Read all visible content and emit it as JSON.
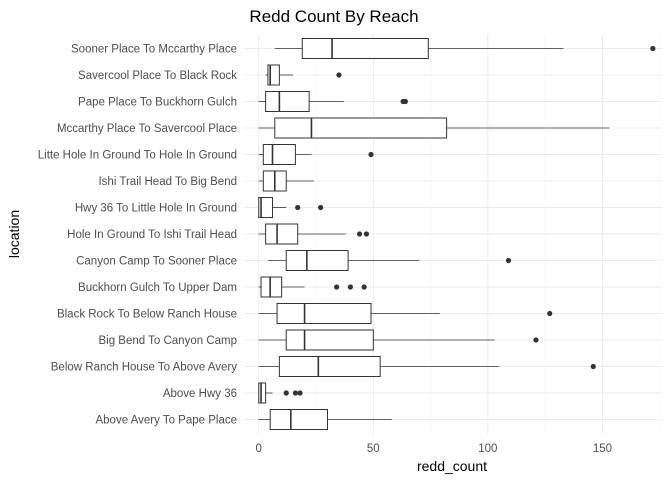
{
  "chart_data": {
    "type": "boxplot",
    "orientation": "horizontal",
    "title": "Redd Count By Reach",
    "xlabel": "redd_count",
    "ylabel": "location",
    "xlim": [
      -6,
      176
    ],
    "x_ticks": [
      0,
      50,
      100,
      150
    ],
    "x_minor_ticks": [
      25,
      75,
      125,
      175
    ],
    "grid": true,
    "legend": "none",
    "colors": {
      "box_fill": "#ffffff",
      "box_stroke": "#333333",
      "grid_major": "#ebebeb",
      "grid_minor": "#f3f3f3",
      "outlier": "#333333"
    },
    "categories": [
      "Sooner Place To Mccarthy Place",
      "Savercool Place  To Black Rock",
      "Pape Place To Buckhorn Gulch",
      "Mccarthy Place To Savercool Place",
      "Litte Hole In Ground To Hole In Ground",
      "Ishi Trail Head To Big Bend",
      "Hwy 36 To Little Hole In Ground",
      "Hole In Ground To Ishi Trail Head",
      "Canyon Camp To Sooner Place",
      "Buckhorn Gulch To Upper Dam",
      "Black Rock To Below Ranch House",
      "Big Bend To Canyon Camp",
      "Below Ranch House To Above Avery",
      "Above Hwy 36",
      "Above Avery To Pape Place"
    ],
    "boxes": [
      {
        "min": 7,
        "q1": 19,
        "median": 32,
        "q3": 74,
        "max": 133,
        "outliers": [
          172
        ]
      },
      {
        "min": 3,
        "q1": 4,
        "median": 5,
        "q3": 9,
        "max": 15,
        "outliers": [
          35
        ]
      },
      {
        "min": 0,
        "q1": 3,
        "median": 9,
        "q3": 22,
        "max": 37,
        "outliers": [
          63,
          64
        ]
      },
      {
        "min": 0,
        "q1": 7,
        "median": 23,
        "q3": 82,
        "max": 153,
        "outliers": []
      },
      {
        "min": 0,
        "q1": 2,
        "median": 6,
        "q3": 16,
        "max": 23,
        "outliers": [
          49
        ]
      },
      {
        "min": 0,
        "q1": 2,
        "median": 7,
        "q3": 12,
        "max": 24,
        "outliers": []
      },
      {
        "min": 0,
        "q1": 0,
        "median": 1,
        "q3": 6,
        "max": 12,
        "outliers": [
          17,
          27
        ]
      },
      {
        "min": 0,
        "q1": 3,
        "median": 8,
        "q3": 17,
        "max": 38,
        "outliers": [
          44,
          47
        ]
      },
      {
        "min": 4,
        "q1": 12,
        "median": 21,
        "q3": 39,
        "max": 70,
        "outliers": [
          109
        ]
      },
      {
        "min": 0,
        "q1": 1,
        "median": 5,
        "q3": 10,
        "max": 20,
        "outliers": [
          34,
          40,
          46
        ]
      },
      {
        "min": 0,
        "q1": 8,
        "median": 20,
        "q3": 49,
        "max": 79,
        "outliers": [
          127
        ]
      },
      {
        "min": 0,
        "q1": 12,
        "median": 20,
        "q3": 50,
        "max": 103,
        "outliers": [
          121
        ]
      },
      {
        "min": 0,
        "q1": 9,
        "median": 26,
        "q3": 53,
        "max": 105,
        "outliers": [
          146
        ]
      },
      {
        "min": 0,
        "q1": 0,
        "median": 1,
        "q3": 3,
        "max": 6,
        "outliers": [
          12,
          16,
          18
        ]
      },
      {
        "min": 0,
        "q1": 5,
        "median": 14,
        "q3": 30,
        "max": 58,
        "outliers": []
      }
    ]
  }
}
